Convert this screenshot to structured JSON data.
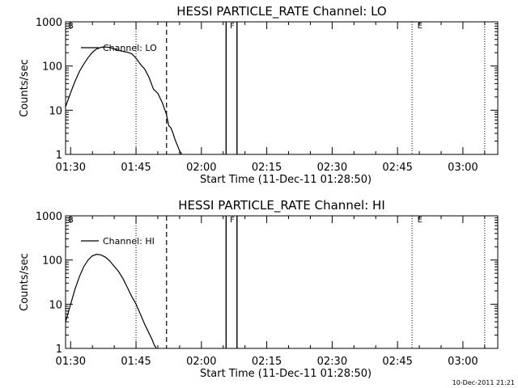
{
  "timestamp": "10-Dec-2011 21:21",
  "chart_data": [
    {
      "type": "line",
      "title": "HESSI PARTICLE_RATE Channel: LO",
      "xlabel": "Start Time (11-Dec-11 01:28:50)",
      "ylabel": "Counts/sec",
      "xlim": [
        "01:28:50",
        "03:08:00"
      ],
      "ylim": [
        1,
        1000
      ],
      "yscale": "log",
      "x_ticks": [
        "01:30",
        "01:45",
        "02:00",
        "02:15",
        "02:30",
        "02:45",
        "03:00"
      ],
      "y_ticks": [
        "1",
        "10",
        "100",
        "1000"
      ],
      "flags": [
        {
          "label": "B",
          "time": "01:28:50"
        },
        {
          "label": "F",
          "time": "02:06:00"
        },
        {
          "label": "E",
          "time": "02:49:00"
        }
      ],
      "marker_lines": [
        {
          "style": "dotted",
          "time": "01:45:00"
        },
        {
          "style": "dashed",
          "time": "01:52:00"
        },
        {
          "style": "solid",
          "time": "02:05:40"
        },
        {
          "style": "solid",
          "time": "02:08:10"
        },
        {
          "style": "dotted",
          "time": "02:48:20"
        },
        {
          "style": "dotted",
          "time": "03:05:00"
        }
      ],
      "series": [
        {
          "name": "Channel: LO",
          "x": [
            "01:28:50",
            "01:30:00",
            "01:31:00",
            "01:32:00",
            "01:33:00",
            "01:34:00",
            "01:35:00",
            "01:36:00",
            "01:37:00",
            "01:38:00",
            "01:39:00",
            "01:40:00",
            "01:41:00",
            "01:42:00",
            "01:43:00",
            "01:44:00",
            "01:45:00",
            "01:46:00",
            "01:47:00",
            "01:48:00",
            "01:49:00",
            "01:50:00",
            "01:51:00",
            "01:52:00",
            "01:52:30",
            "01:53:00",
            "01:53:30",
            "01:54:00",
            "01:54:30",
            "01:55:00",
            "01:55:30"
          ],
          "y": [
            12,
            25,
            45,
            75,
            110,
            155,
            205,
            245,
            265,
            270,
            262,
            245,
            225,
            215,
            205,
            190,
            150,
            110,
            85,
            55,
            30,
            24,
            15,
            8,
            4.5,
            4,
            3,
            2.1,
            1.6,
            1.2,
            1
          ]
        }
      ]
    },
    {
      "type": "line",
      "title": "HESSI PARTICLE_RATE Channel: HI",
      "xlabel": "Start Time (11-Dec-11 01:28:50)",
      "ylabel": "Counts/sec",
      "xlim": [
        "01:28:50",
        "03:08:00"
      ],
      "ylim": [
        1,
        1000
      ],
      "yscale": "log",
      "x_ticks": [
        "01:30",
        "01:45",
        "02:00",
        "02:15",
        "02:30",
        "02:45",
        "03:00"
      ],
      "y_ticks": [
        "1",
        "10",
        "100",
        "1000"
      ],
      "flags": [
        {
          "label": "B",
          "time": "01:28:50"
        },
        {
          "label": "F",
          "time": "02:06:00"
        },
        {
          "label": "E",
          "time": "02:49:00"
        }
      ],
      "marker_lines": [
        {
          "style": "dotted",
          "time": "01:45:00"
        },
        {
          "style": "dashed",
          "time": "01:52:00"
        },
        {
          "style": "solid",
          "time": "02:05:40"
        },
        {
          "style": "solid",
          "time": "02:08:10"
        },
        {
          "style": "dotted",
          "time": "02:48:20"
        },
        {
          "style": "dotted",
          "time": "03:05:00"
        }
      ],
      "series": [
        {
          "name": "Channel: HI",
          "x": [
            "01:28:50",
            "01:30:00",
            "01:31:00",
            "01:32:00",
            "01:33:00",
            "01:34:00",
            "01:35:00",
            "01:36:00",
            "01:37:00",
            "01:38:00",
            "01:39:00",
            "01:40:00",
            "01:41:00",
            "01:42:00",
            "01:43:00",
            "01:44:00",
            "01:45:00",
            "01:46:00",
            "01:47:00",
            "01:48:00",
            "01:48:40",
            "01:49:10",
            "01:49:40"
          ],
          "y": [
            4,
            10,
            22,
            42,
            70,
            100,
            125,
            135,
            130,
            115,
            95,
            72,
            55,
            38,
            24,
            15,
            10,
            6,
            3.5,
            2.2,
            1.6,
            1.2,
            1
          ]
        }
      ]
    }
  ]
}
